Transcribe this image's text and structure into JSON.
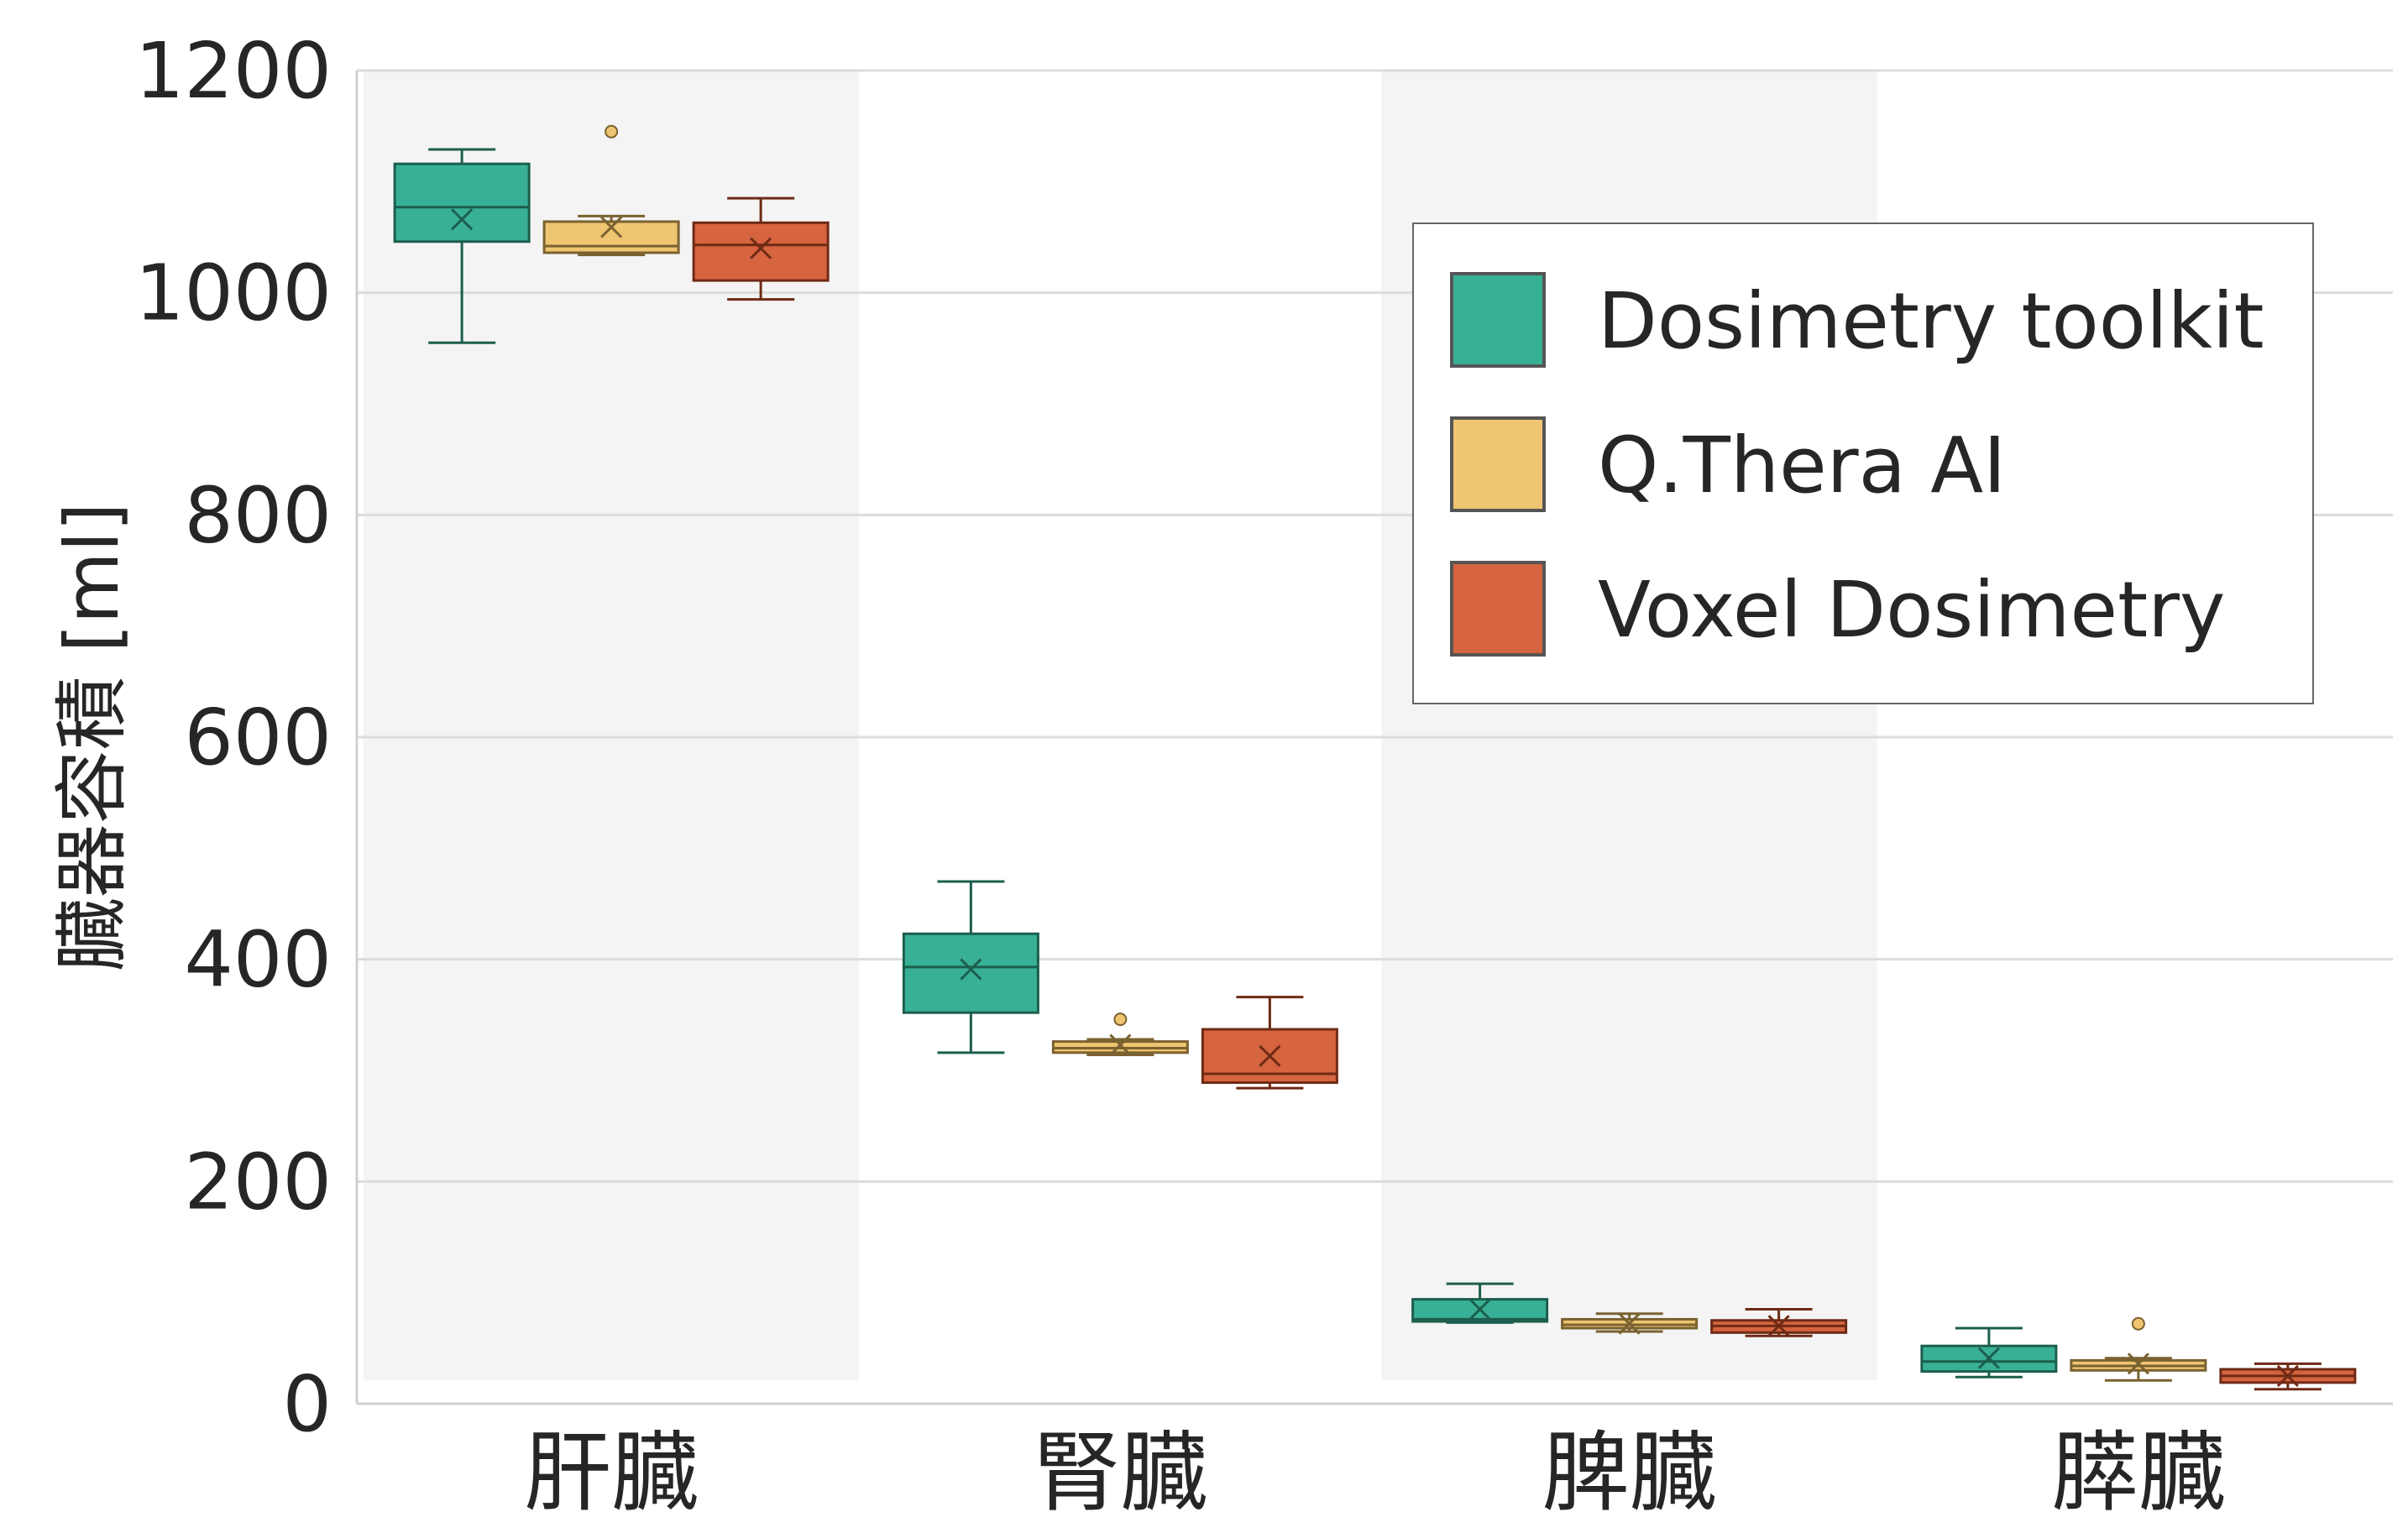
{
  "chart_data": {
    "type": "box",
    "title": "",
    "xlabel": "",
    "ylabel": "臓器容積 [ml]",
    "ylim": [
      0,
      1200
    ],
    "yticks": [
      0,
      200,
      400,
      600,
      800,
      1000,
      1200
    ],
    "grid": "horizontal",
    "legend_position": "upper-right",
    "categories": [
      "肝臓",
      "腎臓",
      "脾臓",
      "膵臓"
    ],
    "series": [
      {
        "name": "Dosimetry toolkit",
        "color": "#38b095",
        "stroke": "#1c5e4d",
        "boxes": [
          {
            "whisker_low": 955,
            "q1": 1046,
            "median": 1077,
            "q3": 1116,
            "whisker_high": 1129,
            "mean": 1066,
            "outliers": []
          },
          {
            "whisker_low": 316,
            "q1": 352,
            "median": 393,
            "q3": 423,
            "whisker_high": 470,
            "mean": 391,
            "outliers": []
          },
          {
            "whisker_low": 73,
            "q1": 74,
            "median": 76,
            "q3": 94,
            "whisker_high": 108,
            "mean": 85,
            "outliers": []
          },
          {
            "whisker_low": 24,
            "q1": 29,
            "median": 38,
            "q3": 52,
            "whisker_high": 68,
            "mean": 41,
            "outliers": []
          }
        ]
      },
      {
        "name": "Q.Thera AI",
        "color": "#efc571",
        "stroke": "#7a6230",
        "boxes": [
          {
            "whisker_low": 1034,
            "q1": 1036,
            "median": 1042,
            "q3": 1064,
            "whisker_high": 1069,
            "mean": 1059,
            "outliers": [
              1145
            ]
          },
          {
            "whisker_low": 314,
            "q1": 316,
            "median": 320,
            "q3": 326,
            "whisker_high": 328,
            "mean": 323,
            "outliers": [
              346
            ]
          },
          {
            "whisker_low": 65,
            "q1": 68,
            "median": 71,
            "q3": 76,
            "whisker_high": 81,
            "mean": 72,
            "outliers": []
          },
          {
            "whisker_low": 21,
            "q1": 30,
            "median": 34,
            "q3": 39,
            "whisker_high": 41,
            "mean": 36,
            "outliers": [
              72
            ]
          }
        ]
      },
      {
        "name": "Voxel Dosimetry",
        "color": "#d5643f",
        "stroke": "#6e2a15",
        "boxes": [
          {
            "whisker_low": 994,
            "q1": 1011,
            "median": 1043,
            "q3": 1063,
            "whisker_high": 1085,
            "mean": 1040,
            "outliers": []
          },
          {
            "whisker_low": 284,
            "q1": 289,
            "median": 297,
            "q3": 337,
            "whisker_high": 366,
            "mean": 313,
            "outliers": []
          },
          {
            "whisker_low": 61,
            "q1": 64,
            "median": 70,
            "q3": 75,
            "whisker_high": 85,
            "mean": 70,
            "outliers": []
          },
          {
            "whisker_low": 13,
            "q1": 19,
            "median": 25,
            "q3": 31,
            "whisker_high": 36,
            "mean": 25,
            "outliers": []
          }
        ]
      }
    ]
  }
}
